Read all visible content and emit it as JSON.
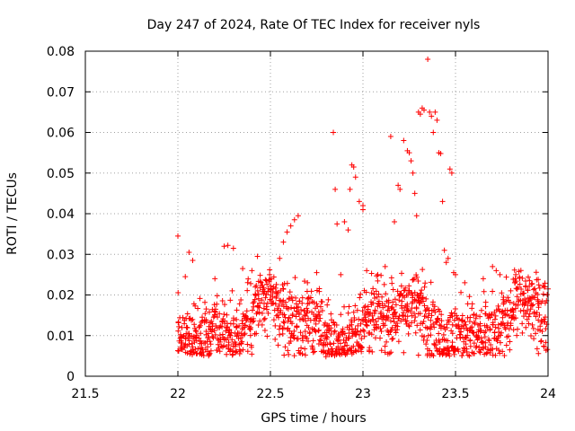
{
  "chart_data": {
    "type": "scatter",
    "title": "Day 247 of 2024, Rate Of TEC Index for receiver nyls",
    "xlabel": "GPS time / hours",
    "ylabel": "ROTI / TECUs",
    "xlim": [
      21.5,
      24
    ],
    "ylim": [
      0,
      0.08
    ],
    "xticks": [
      21.5,
      22,
      22.5,
      23,
      23.5,
      24
    ],
    "xtick_labels": [
      "21.5",
      "22",
      "22.5",
      "23",
      "23.5",
      "24"
    ],
    "yticks": [
      0,
      0.01,
      0.02,
      0.03,
      0.04,
      0.05,
      0.06,
      0.07,
      0.08
    ],
    "ytick_labels": [
      "0",
      "0.01",
      "0.02",
      "0.03",
      "0.04",
      "0.05",
      "0.06",
      "0.07",
      "0.08"
    ],
    "grid": true,
    "marker": "plus",
    "color": "#ff0000",
    "series": [
      {
        "name": "ROTI",
        "points": [
          [
            22.0,
            0.0345
          ],
          [
            22.0,
            0.0063
          ],
          [
            22.02,
            0.0095
          ],
          [
            22.04,
            0.0245
          ],
          [
            22.06,
            0.0305
          ],
          [
            22.08,
            0.0285
          ],
          [
            22.12,
            0.008
          ],
          [
            22.2,
            0.024
          ],
          [
            22.25,
            0.032
          ],
          [
            22.27,
            0.0322
          ],
          [
            22.3,
            0.0315
          ],
          [
            22.35,
            0.0265
          ],
          [
            22.4,
            0.026
          ],
          [
            22.43,
            0.0295
          ],
          [
            22.55,
            0.029
          ],
          [
            22.57,
            0.033
          ],
          [
            22.59,
            0.0355
          ],
          [
            22.61,
            0.037
          ],
          [
            22.63,
            0.0385
          ],
          [
            22.65,
            0.0395
          ],
          [
            22.7,
            0.023
          ],
          [
            22.75,
            0.0255
          ],
          [
            22.8,
            0.0048
          ],
          [
            22.82,
            0.006
          ],
          [
            22.84,
            0.06
          ],
          [
            22.85,
            0.046
          ],
          [
            22.86,
            0.0375
          ],
          [
            22.88,
            0.025
          ],
          [
            22.9,
            0.038
          ],
          [
            22.92,
            0.036
          ],
          [
            22.93,
            0.046
          ],
          [
            22.94,
            0.052
          ],
          [
            22.95,
            0.0515
          ],
          [
            22.96,
            0.049
          ],
          [
            22.98,
            0.043
          ],
          [
            23.0,
            0.042
          ],
          [
            23.0,
            0.041
          ],
          [
            23.02,
            0.026
          ],
          [
            23.05,
            0.006
          ],
          [
            23.08,
            0.025
          ],
          [
            23.12,
            0.027
          ],
          [
            23.15,
            0.059
          ],
          [
            23.17,
            0.038
          ],
          [
            23.19,
            0.047
          ],
          [
            23.2,
            0.046
          ],
          [
            23.22,
            0.058
          ],
          [
            23.24,
            0.0555
          ],
          [
            23.25,
            0.055
          ],
          [
            23.26,
            0.053
          ],
          [
            23.27,
            0.05
          ],
          [
            23.28,
            0.045
          ],
          [
            23.29,
            0.0395
          ],
          [
            23.3,
            0.065
          ],
          [
            23.31,
            0.0645
          ],
          [
            23.32,
            0.066
          ],
          [
            23.33,
            0.0655
          ],
          [
            23.35,
            0.078
          ],
          [
            23.36,
            0.065
          ],
          [
            23.37,
            0.064
          ],
          [
            23.38,
            0.06
          ],
          [
            23.39,
            0.065
          ],
          [
            23.4,
            0.063
          ],
          [
            23.41,
            0.055
          ],
          [
            23.42,
            0.0548
          ],
          [
            23.43,
            0.043
          ],
          [
            23.44,
            0.031
          ],
          [
            23.45,
            0.028
          ],
          [
            23.46,
            0.029
          ],
          [
            23.47,
            0.051
          ],
          [
            23.48,
            0.05
          ],
          [
            23.49,
            0.0255
          ],
          [
            23.5,
            0.025
          ],
          [
            23.55,
            0.023
          ],
          [
            23.65,
            0.024
          ],
          [
            23.7,
            0.027
          ],
          [
            23.72,
            0.026
          ],
          [
            23.74,
            0.025
          ],
          [
            23.82,
            0.023
          ],
          [
            23.9,
            0.0235
          ],
          [
            23.95,
            0.0225
          ],
          [
            23.98,
            0.022
          ],
          [
            24.0,
            0.0215
          ],
          [
            23.35,
            0.0055
          ],
          [
            23.3,
            0.0052
          ],
          [
            23.22,
            0.0058
          ]
        ]
      }
    ],
    "dense_band": {
      "description_values": "dense cluster of samples 22.0 to 24.0 h",
      "x_range": [
        22.0,
        24.0
      ],
      "y_range": [
        0.005,
        0.025
      ],
      "typical": 0.013
    }
  }
}
